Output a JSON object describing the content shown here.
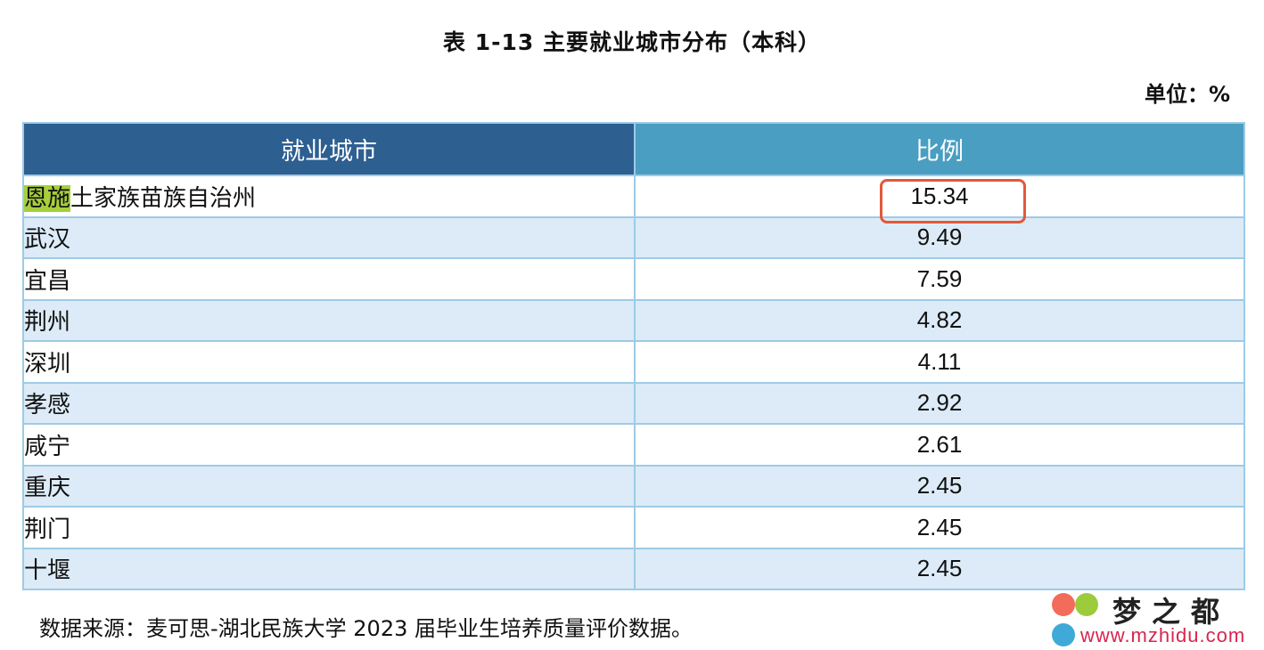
{
  "caption": "表  1-13   主要就业城市分布（本科）",
  "unit": "单位：%",
  "table": {
    "headers": [
      "就业城市",
      "比例"
    ],
    "rows": [
      {
        "city_hl": "恩施",
        "city_rest": "土家族苗族自治州",
        "value": "15.34"
      },
      {
        "city_hl": "",
        "city_rest": "武汉",
        "value": "9.49"
      },
      {
        "city_hl": "",
        "city_rest": "宜昌",
        "value": "7.59"
      },
      {
        "city_hl": "",
        "city_rest": "荆州",
        "value": "4.82"
      },
      {
        "city_hl": "",
        "city_rest": "深圳",
        "value": "4.11"
      },
      {
        "city_hl": "",
        "city_rest": "孝感",
        "value": "2.92"
      },
      {
        "city_hl": "",
        "city_rest": "咸宁",
        "value": "2.61"
      },
      {
        "city_hl": "",
        "city_rest": "重庆",
        "value": "2.45"
      },
      {
        "city_hl": "",
        "city_rest": "荆门",
        "value": "2.45"
      },
      {
        "city_hl": "",
        "city_rest": "十堰",
        "value": "2.45"
      }
    ]
  },
  "source": "数据来源：麦可思-湖北民族大学 2023 届毕业生培养质量评价数据。",
  "watermark": {
    "name": "梦之都",
    "url": "www.mzhidu.com"
  },
  "colors": {
    "header_left": "#2d5f91",
    "header_right": "#4a9ec2",
    "row_alt": "#dcebf7",
    "highlight": "#a6cf3a",
    "annotation": "#e05a3a"
  }
}
